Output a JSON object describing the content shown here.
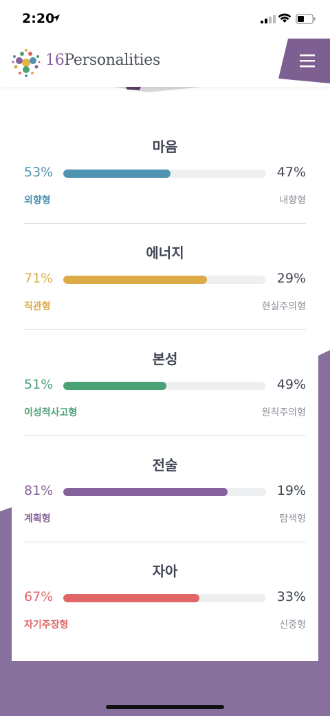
{
  "status_bar": {
    "time": "2:20"
  },
  "header": {
    "logo_num": "16",
    "logo_word": "Personalities"
  },
  "colors": {
    "purple_bg": "#88709c",
    "menu_bg": "#7d5f92"
  },
  "traits": [
    {
      "title": "마음",
      "left_pct": "53%",
      "right_pct": "47%",
      "left_label": "외향형",
      "right_label": "내향형",
      "fill": 0.53,
      "color": "#4f93b1"
    },
    {
      "title": "에너지",
      "left_pct": "71%",
      "right_pct": "29%",
      "left_label": "직관형",
      "right_label": "현실주의형",
      "fill": 0.71,
      "color": "#dcab47"
    },
    {
      "title": "본성",
      "left_pct": "51%",
      "right_pct": "49%",
      "left_label": "이성적사고형",
      "right_label": "원칙주의형",
      "fill": 0.51,
      "color": "#4aa176"
    },
    {
      "title": "전술",
      "left_pct": "81%",
      "right_pct": "19%",
      "left_label": "계획형",
      "right_label": "탐색형",
      "fill": 0.81,
      "color": "#86629c"
    },
    {
      "title": "자아",
      "left_pct": "67%",
      "right_pct": "33%",
      "left_label": "자기주장형",
      "right_label": "신중형",
      "fill": 0.67,
      "color": "#e06667"
    }
  ]
}
